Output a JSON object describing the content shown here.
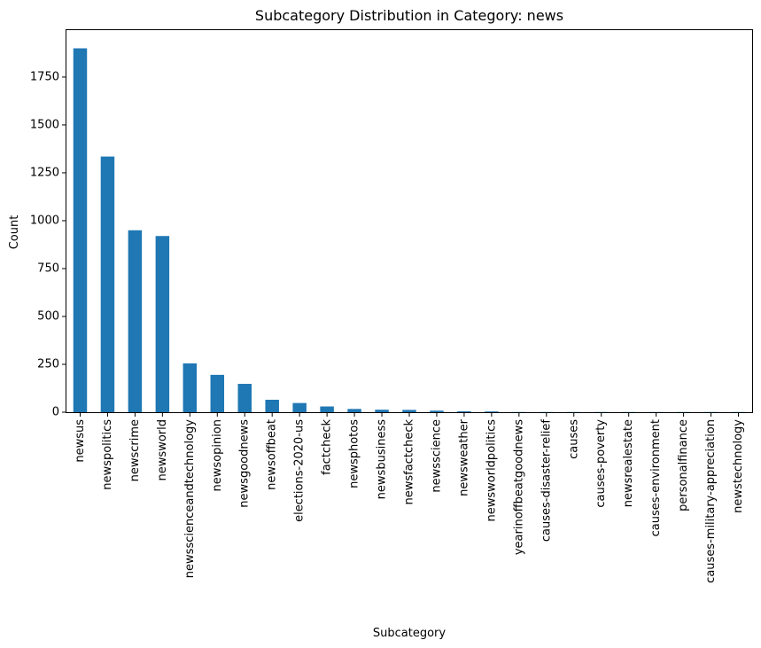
{
  "chart_data": {
    "type": "bar",
    "title": "Subcategory Distribution in Category: news",
    "xlabel": "Subcategory",
    "ylabel": "Count",
    "ylim": [
      0,
      1995
    ],
    "yticks": [
      0,
      250,
      500,
      750,
      1000,
      1250,
      1500,
      1750
    ],
    "ytick_labels": [
      "0",
      "250",
      "500",
      "750",
      "1000",
      "1250",
      "1500",
      "1750"
    ],
    "bar_color": "#1f77b4",
    "grid": false,
    "categories": [
      "newsus",
      "newspolitics",
      "newscrime",
      "newsworld",
      "newsscienceandtechnology",
      "newsopinion",
      "newsgoodnews",
      "newsoffbeat",
      "elections-2020-us",
      "factcheck",
      "newsphotos",
      "newsbusiness",
      "newsfactcheck",
      "newsscience",
      "newsweather",
      "newsworldpolitics",
      "yearinoffbeatgoodnews",
      "causes-disaster-relief",
      "causes",
      "causes-poverty",
      "newsrealestate",
      "causes-environment",
      "personalfinance",
      "causes-military-appreciation",
      "newstechnology"
    ],
    "values": [
      1900,
      1335,
      950,
      920,
      255,
      195,
      148,
      65,
      48,
      30,
      17,
      13,
      12,
      8,
      5,
      4,
      1,
      1,
      1,
      1,
      1,
      1,
      1,
      1,
      1
    ]
  }
}
